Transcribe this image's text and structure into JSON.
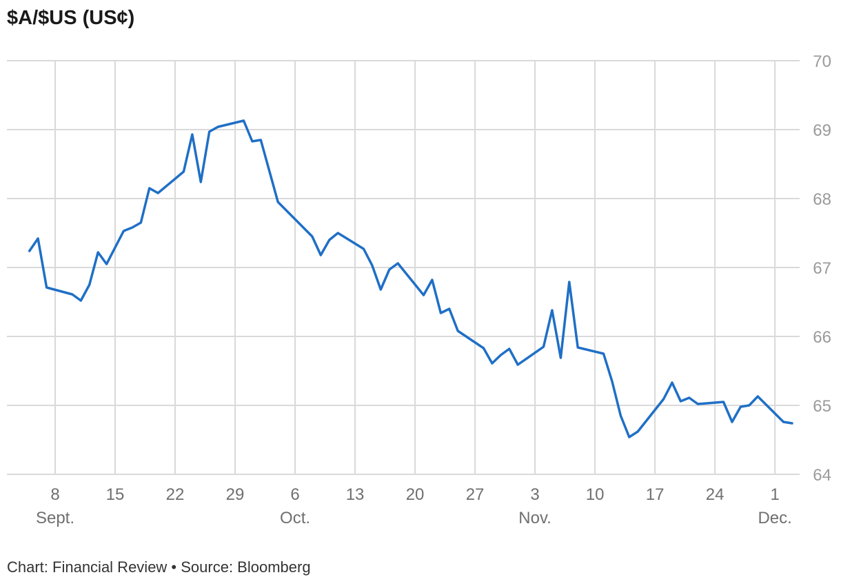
{
  "title": "$A/$US (US¢)",
  "footer": "Chart: Financial Review • Source: Bloomberg",
  "colors": {
    "line": "#1f6fc6",
    "grid": "#d9d9d9",
    "tick_text": "#9a9a9a",
    "axis_text": "#6f6f6f"
  },
  "chart_data": {
    "type": "line",
    "title": "$A/$US (US¢)",
    "xlabel": "",
    "ylabel": "",
    "ylim": [
      64,
      70
    ],
    "yticks": [
      64,
      65,
      66,
      67,
      68,
      69,
      70
    ],
    "xlim": [
      "2025-09-04",
      "2025-12-03"
    ],
    "grid": true,
    "yaxis_position": "right",
    "xticks": [
      {
        "x": "2025-09-08",
        "label": "8",
        "month": "Sept."
      },
      {
        "x": "2025-09-15",
        "label": "15",
        "month": ""
      },
      {
        "x": "2025-09-22",
        "label": "22",
        "month": ""
      },
      {
        "x": "2025-09-29",
        "label": "29",
        "month": ""
      },
      {
        "x": "2025-10-06",
        "label": "6",
        "month": "Oct."
      },
      {
        "x": "2025-10-13",
        "label": "13",
        "month": ""
      },
      {
        "x": "2025-10-20",
        "label": "20",
        "month": ""
      },
      {
        "x": "2025-10-27",
        "label": "27",
        "month": ""
      },
      {
        "x": "2025-11-03",
        "label": "3",
        "month": "Nov."
      },
      {
        "x": "2025-11-10",
        "label": "10",
        "month": ""
      },
      {
        "x": "2025-11-17",
        "label": "17",
        "month": ""
      },
      {
        "x": "2025-11-24",
        "label": "24",
        "month": ""
      },
      {
        "x": "2025-12-01",
        "label": "1",
        "month": "Dec."
      }
    ],
    "series": [
      {
        "points": [
          [
            "2025-09-05",
            67.24
          ],
          [
            "2025-09-06",
            67.42
          ],
          [
            "2025-09-07",
            66.71
          ],
          [
            "2025-09-10",
            66.61
          ],
          [
            "2025-09-11",
            66.52
          ],
          [
            "2025-09-12",
            66.75
          ],
          [
            "2025-09-13",
            67.22
          ],
          [
            "2025-09-14",
            67.05
          ],
          [
            "2025-09-16",
            67.53
          ],
          [
            "2025-09-17",
            67.58
          ],
          [
            "2025-09-18",
            67.65
          ],
          [
            "2025-09-19",
            68.15
          ],
          [
            "2025-09-20",
            68.08
          ],
          [
            "2025-09-23",
            68.39
          ],
          [
            "2025-09-24",
            68.93
          ],
          [
            "2025-09-25",
            68.24
          ],
          [
            "2025-09-26",
            68.97
          ],
          [
            "2025-09-27",
            69.04
          ],
          [
            "2025-09-30",
            69.13
          ],
          [
            "2025-10-01",
            68.83
          ],
          [
            "2025-10-02",
            68.85
          ],
          [
            "2025-10-04",
            67.95
          ],
          [
            "2025-10-08",
            67.45
          ],
          [
            "2025-10-09",
            67.18
          ],
          [
            "2025-10-10",
            67.4
          ],
          [
            "2025-10-11",
            67.5
          ],
          [
            "2025-10-14",
            67.27
          ],
          [
            "2025-10-15",
            67.03
          ],
          [
            "2025-10-16",
            66.68
          ],
          [
            "2025-10-17",
            66.97
          ],
          [
            "2025-10-18",
            67.06
          ],
          [
            "2025-10-21",
            66.6
          ],
          [
            "2025-10-22",
            66.82
          ],
          [
            "2025-10-23",
            66.34
          ],
          [
            "2025-10-24",
            66.4
          ],
          [
            "2025-10-25",
            66.08
          ],
          [
            "2025-10-28",
            65.83
          ],
          [
            "2025-10-29",
            65.61
          ],
          [
            "2025-10-30",
            65.73
          ],
          [
            "2025-10-31",
            65.82
          ],
          [
            "2025-11-01",
            65.59
          ],
          [
            "2025-11-04",
            65.85
          ],
          [
            "2025-11-05",
            66.38
          ],
          [
            "2025-11-06",
            65.69
          ],
          [
            "2025-11-07",
            66.79
          ],
          [
            "2025-11-08",
            65.84
          ],
          [
            "2025-11-11",
            65.75
          ],
          [
            "2025-11-12",
            65.35
          ],
          [
            "2025-11-13",
            64.85
          ],
          [
            "2025-11-14",
            64.54
          ],
          [
            "2025-11-15",
            64.62
          ],
          [
            "2025-11-18",
            65.09
          ],
          [
            "2025-11-19",
            65.33
          ],
          [
            "2025-11-20",
            65.06
          ],
          [
            "2025-11-21",
            65.11
          ],
          [
            "2025-11-22",
            65.02
          ],
          [
            "2025-11-25",
            65.05
          ],
          [
            "2025-11-26",
            64.76
          ],
          [
            "2025-11-27",
            64.98
          ],
          [
            "2025-11-28",
            65.0
          ],
          [
            "2025-11-29",
            65.13
          ],
          [
            "2025-12-02",
            64.76
          ],
          [
            "2025-12-03",
            64.74
          ]
        ]
      }
    ]
  }
}
